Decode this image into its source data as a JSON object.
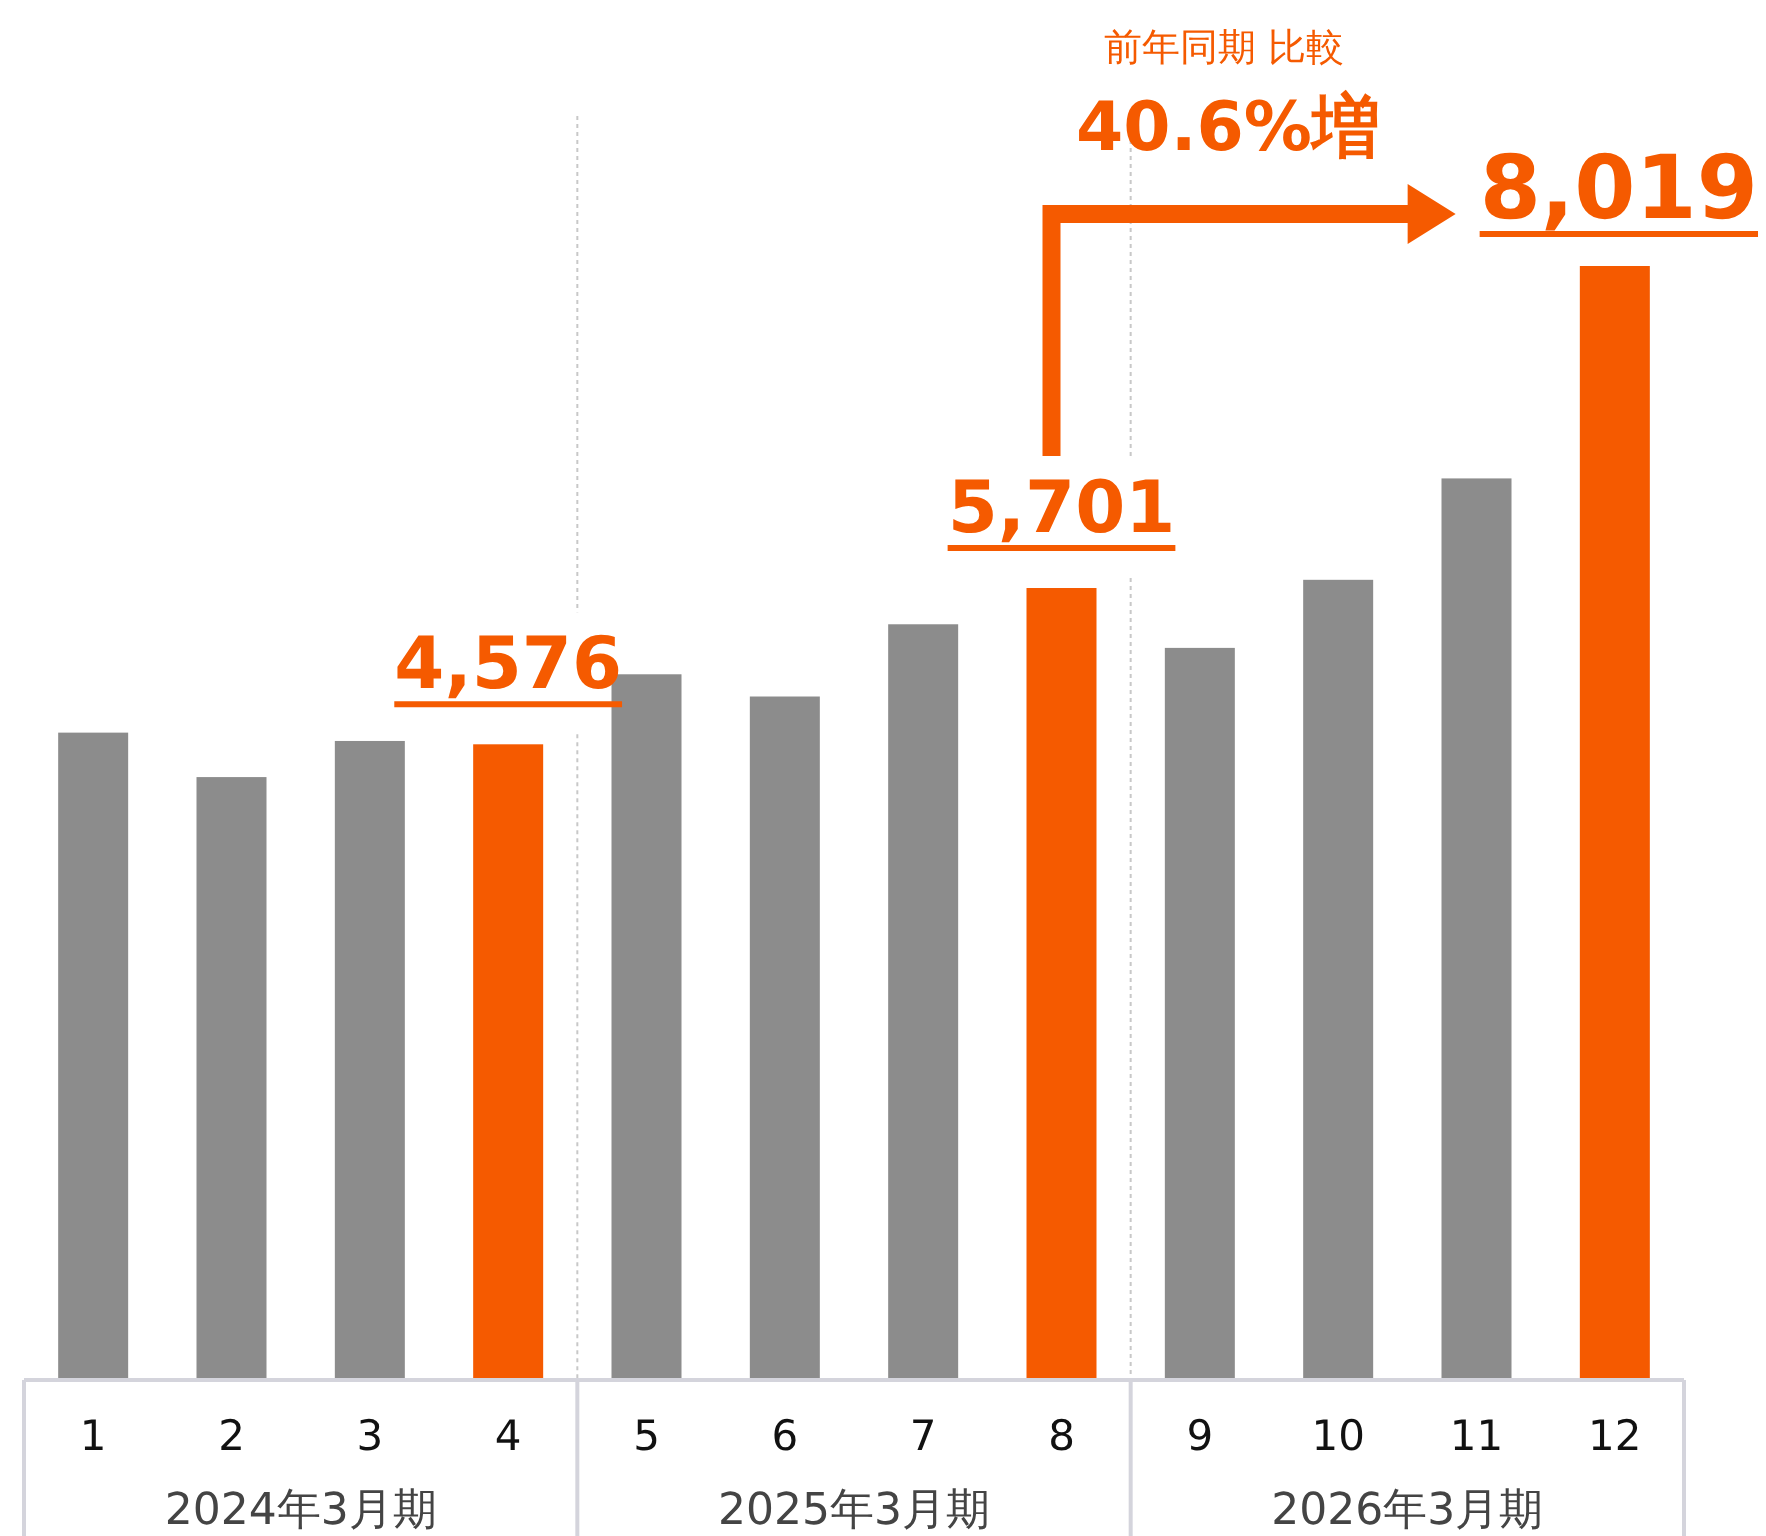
{
  "chart_data": {
    "type": "bar",
    "categories": [
      "1",
      "2",
      "3",
      "4",
      "5",
      "6",
      "7",
      "8",
      "9",
      "10",
      "11",
      "12"
    ],
    "values": [
      4660,
      4340,
      4600,
      4576,
      5080,
      4920,
      5440,
      5701,
      5270,
      5760,
      6490,
      8019
    ],
    "colors": [
      "#8c8c8c",
      "#8c8c8c",
      "#8c8c8c",
      "#f55a00",
      "#8c8c8c",
      "#8c8c8c",
      "#8c8c8c",
      "#f55a00",
      "#8c8c8c",
      "#8c8c8c",
      "#8c8c8c",
      "#f55a00"
    ],
    "value_labels": [
      null,
      null,
      null,
      "4,576",
      null,
      null,
      null,
      "5,701",
      null,
      null,
      null,
      "8,019"
    ],
    "annotations": [
      "2024年3月期",
      "2025年3月期",
      "2026年3月期",
      "前年同期 比較",
      "40.6%増"
    ]
  }
}
